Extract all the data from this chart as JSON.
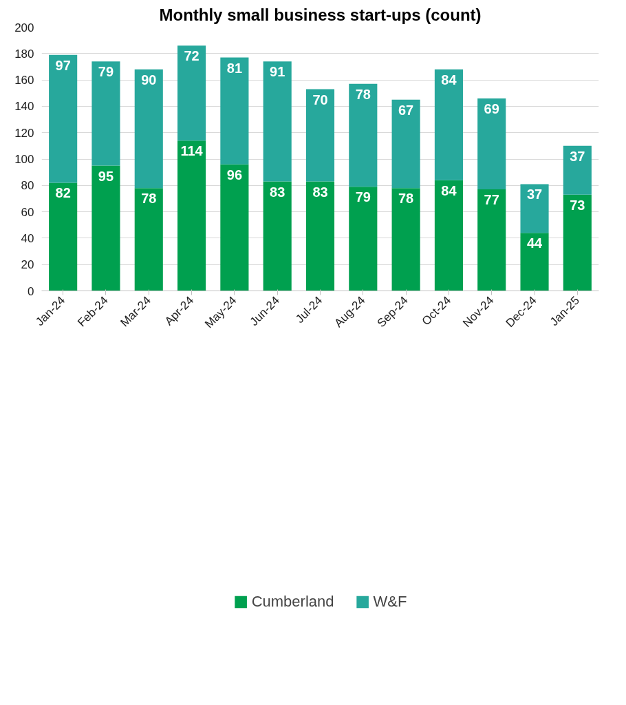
{
  "chart_data": {
    "type": "bar",
    "title": "Monthly small business start-ups (count)",
    "stacked": true,
    "categories": [
      "Jan-24",
      "Feb-24",
      "Mar-24",
      "Apr-24",
      "May-24",
      "Jun-24",
      "Jul-24",
      "Aug-24",
      "Sep-24",
      "Oct-24",
      "Nov-24",
      "Dec-24",
      "Jan-25"
    ],
    "series": [
      {
        "name": "Cumberland",
        "color": "#00a04f",
        "values": [
          82,
          95,
          78,
          114,
          96,
          83,
          83,
          79,
          78,
          84,
          77,
          44,
          73
        ]
      },
      {
        "name": "W&F",
        "color": "#27a89c",
        "values": [
          97,
          79,
          90,
          72,
          81,
          91,
          70,
          78,
          67,
          84,
          69,
          37,
          37
        ]
      }
    ],
    "ylim": [
      0,
      200
    ],
    "yticks": [
      0,
      20,
      40,
      60,
      80,
      100,
      120,
      140,
      160,
      180,
      200
    ],
    "grid": "y",
    "legend": "bottom",
    "data_labels": true
  }
}
